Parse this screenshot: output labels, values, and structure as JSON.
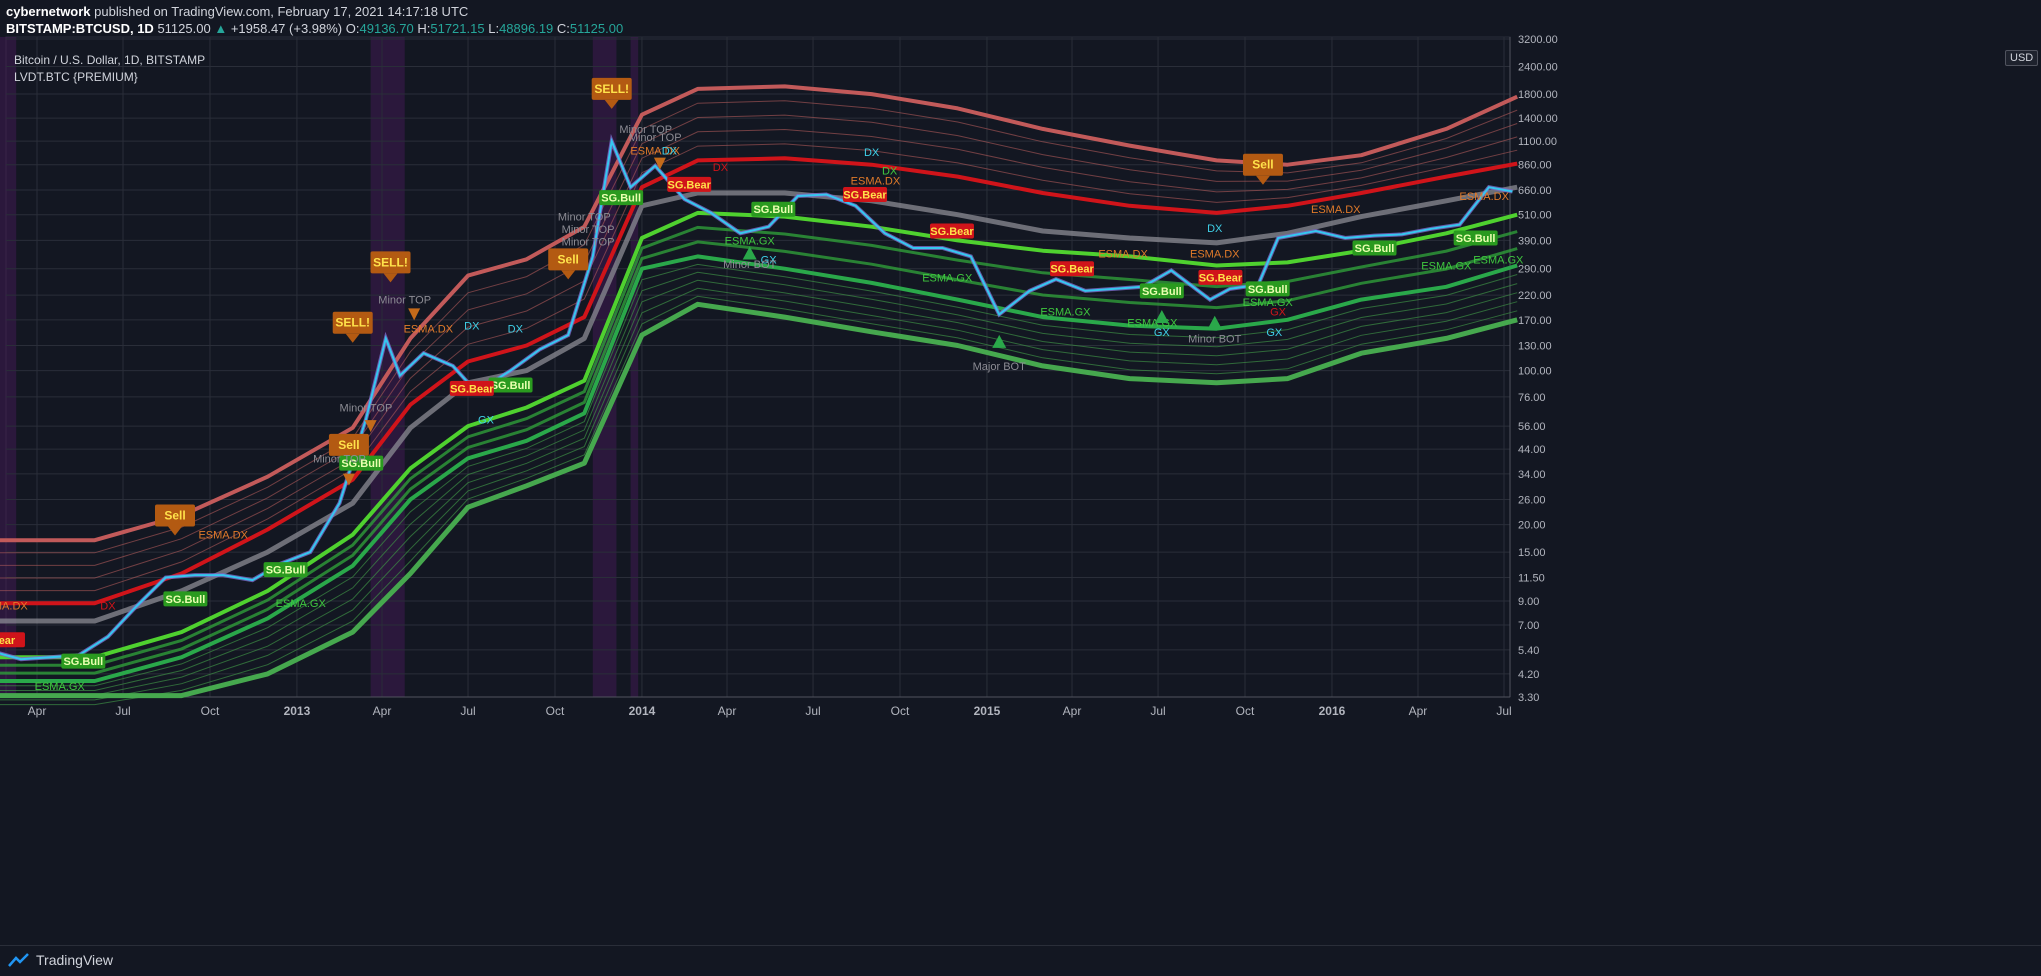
{
  "header": {
    "author": "cybernetwork",
    "published": "published on TradingView.com, February 17, 2021 14:17:18 UTC",
    "symbol": "BITSTAMP:BTCUSD, 1D",
    "last": "51125.00",
    "change": "+1958.47 (+3.98%)",
    "o_label": "O:",
    "o": "49136.70",
    "h_label": "H:",
    "h": "51721.15",
    "l_label": "L:",
    "l": "48896.19",
    "c_label": "C:",
    "c": "51125.00"
  },
  "legend": {
    "title": "Bitcoin / U.S. Dollar, 1D, BITSTAMP",
    "indicator": "LVDT.BTC {PREMIUM}",
    "currency": "USD"
  },
  "footer": {
    "brand": "TradingView"
  },
  "chart_data": {
    "type": "line",
    "scale": "log",
    "ylim": [
      3.3,
      3200
    ],
    "y_ticks": [
      "3.30",
      "4.20",
      "5.40",
      "7.00",
      "9.00",
      "11.50",
      "15.00",
      "20.00",
      "26.00",
      "34.00",
      "44.00",
      "56.00",
      "76.00",
      "100.00",
      "130.00",
      "170.00",
      "220.00",
      "290.00",
      "390.00",
      "510.00",
      "660.00",
      "860.00",
      "1100.00",
      "1400.00",
      "1800.00",
      "2400.00",
      "3200.00"
    ],
    "x_ticks": [
      "Apr",
      "Jul",
      "Oct",
      "2013",
      "Apr",
      "Jul",
      "Oct",
      "2014",
      "Apr",
      "Jul",
      "Oct",
      "2015",
      "Apr",
      "Jul",
      "Oct",
      "2016",
      "Apr",
      "Jul"
    ],
    "x_tick_dates": [
      "2012-04-01",
      "2012-07-01",
      "2012-10-01",
      "2013-01-01",
      "2013-04-01",
      "2013-07-01",
      "2013-10-01",
      "2014-01-01",
      "2014-04-01",
      "2014-07-01",
      "2014-10-01",
      "2015-01-01",
      "2015-04-01",
      "2015-07-01",
      "2015-10-01",
      "2016-01-01",
      "2016-04-01",
      "2016-07-01"
    ],
    "price": {
      "name": "BTCUSD",
      "x": [
        "2012-02-15",
        "2012-03-15",
        "2012-04-15",
        "2012-05-15",
        "2012-06-15",
        "2012-07-15",
        "2012-08-15",
        "2012-09-15",
        "2012-10-15",
        "2012-11-15",
        "2012-12-15",
        "2013-01-15",
        "2013-02-15",
        "2013-03-15",
        "2013-04-05",
        "2013-04-20",
        "2013-05-15",
        "2013-06-15",
        "2013-07-10",
        "2013-08-15",
        "2013-09-15",
        "2013-10-15",
        "2013-11-10",
        "2013-11-30",
        "2013-12-20",
        "2014-01-15",
        "2014-02-15",
        "2014-03-15",
        "2014-04-15",
        "2014-05-15",
        "2014-06-15",
        "2014-07-15",
        "2014-08-15",
        "2014-09-15",
        "2014-10-15",
        "2014-11-15",
        "2014-12-15",
        "2015-01-14",
        "2015-02-15",
        "2015-03-15",
        "2015-04-15",
        "2015-05-15",
        "2015-06-15",
        "2015-07-15",
        "2015-08-25",
        "2015-09-15",
        "2015-10-15",
        "2015-11-05",
        "2015-12-15",
        "2016-01-15",
        "2016-02-15",
        "2016-03-15",
        "2016-04-15",
        "2016-05-15",
        "2016-06-15",
        "2016-07-10"
      ],
      "y": [
        5.3,
        4.9,
        5.0,
        5.1,
        6.2,
        8.5,
        11.5,
        11.8,
        11.8,
        11.2,
        13.3,
        15,
        25,
        60,
        140,
        95,
        120,
        105,
        80,
        100,
        125,
        145,
        330,
        1100,
        680,
        850,
        600,
        520,
        420,
        450,
        620,
        630,
        560,
        420,
        360,
        360,
        330,
        180,
        230,
        260,
        230,
        235,
        240,
        285,
        210,
        235,
        245,
        400,
        430,
        400,
        410,
        415,
        440,
        460,
        680,
        650
      ]
    },
    "bands": {
      "x": [
        "2012-02-15",
        "2012-06-01",
        "2012-09-01",
        "2012-12-01",
        "2013-03-01",
        "2013-05-01",
        "2013-07-01",
        "2013-09-01",
        "2013-11-01",
        "2014-01-01",
        "2014-03-01",
        "2014-06-01",
        "2014-09-01",
        "2014-12-01",
        "2015-03-01",
        "2015-06-01",
        "2015-09-01",
        "2015-11-15",
        "2016-02-01",
        "2016-05-01",
        "2016-07-15"
      ],
      "top": [
        17,
        17,
        22,
        33,
        55,
        140,
        270,
        320,
        450,
        1450,
        1900,
        1950,
        1800,
        1550,
        1250,
        1050,
        900,
        860,
        950,
        1250,
        1750
      ],
      "red": [
        8.8,
        8.8,
        12,
        19,
        32,
        70,
        110,
        130,
        175,
        680,
        900,
        920,
        860,
        760,
        640,
        560,
        520,
        560,
        640,
        760,
        870
      ],
      "grey": [
        7.3,
        7.3,
        10,
        15,
        25,
        55,
        88,
        100,
        140,
        560,
        640,
        640,
        590,
        510,
        430,
        400,
        380,
        420,
        500,
        590,
        680
      ],
      "lime": [
        5.0,
        5.0,
        6.5,
        10,
        18,
        36,
        56,
        68,
        90,
        400,
        520,
        500,
        450,
        390,
        350,
        330,
        300,
        310,
        350,
        420,
        510
      ],
      "green": [
        3.9,
        3.9,
        5.0,
        7.5,
        13,
        26,
        40,
        48,
        64,
        290,
        330,
        290,
        250,
        210,
        175,
        160,
        155,
        170,
        210,
        240,
        300
      ],
      "bottom": [
        2.9,
        2.9,
        3.3,
        4.2,
        6.5,
        12,
        24,
        30,
        38,
        145,
        200,
        175,
        150,
        130,
        105,
        92,
        88,
        92,
        120,
        140,
        170
      ]
    },
    "annotations": [
      {
        "t": "SELL!",
        "x": "2013-11-30",
        "y": 1900,
        "kind": "sell"
      },
      {
        "t": "SELL!",
        "x": "2013-04-10",
        "y": 310,
        "kind": "sell"
      },
      {
        "t": "SELL!",
        "x": "2013-03-01",
        "y": 165,
        "kind": "sell"
      },
      {
        "t": "Sell",
        "x": "2012-08-25",
        "y": 22,
        "kind": "sell"
      },
      {
        "t": "Sell",
        "x": "2013-10-15",
        "y": 320,
        "kind": "sell"
      },
      {
        "t": "Sell",
        "x": "2013-02-25",
        "y": 46,
        "kind": "sell"
      },
      {
        "t": "Sell",
        "x": "2015-10-20",
        "y": 860,
        "kind": "sell"
      },
      {
        "t": "SG.Bull",
        "x": "2013-12-10",
        "y": 610,
        "kind": "bull"
      },
      {
        "t": "SG.Bull",
        "x": "2012-09-05",
        "y": 9.2,
        "kind": "bull"
      },
      {
        "t": "SG.Bull",
        "x": "2012-12-20",
        "y": 12.5,
        "kind": "bull"
      },
      {
        "t": "SG.Bull",
        "x": "2012-05-20",
        "y": 4.8,
        "kind": "bull"
      },
      {
        "t": "SG.Bull",
        "x": "2013-03-10",
        "y": 38,
        "kind": "bull"
      },
      {
        "t": "SG.Bull",
        "x": "2013-08-15",
        "y": 86,
        "kind": "bull"
      },
      {
        "t": "SG.Bull",
        "x": "2014-05-20",
        "y": 540,
        "kind": "bull"
      },
      {
        "t": "SG.Bull",
        "x": "2015-07-05",
        "y": 230,
        "kind": "bull"
      },
      {
        "t": "SG.Bull",
        "x": "2015-10-25",
        "y": 235,
        "kind": "bull"
      },
      {
        "t": "SG.Bull",
        "x": "2016-02-15",
        "y": 360,
        "kind": "bull"
      },
      {
        "t": "SG.Bull",
        "x": "2016-06-01",
        "y": 400,
        "kind": "bull"
      },
      {
        "t": "SG.Bear",
        "x": "2014-02-20",
        "y": 700,
        "kind": "bear"
      },
      {
        "t": "SG.Bear",
        "x": "2014-08-25",
        "y": 630,
        "kind": "bear"
      },
      {
        "t": "SG.Bear",
        "x": "2014-11-25",
        "y": 430,
        "kind": "bear"
      },
      {
        "t": "SG.Bear",
        "x": "2015-04-01",
        "y": 290,
        "kind": "bear"
      },
      {
        "t": "SG.Bear",
        "x": "2015-09-05",
        "y": 265,
        "kind": "bear"
      },
      {
        "t": "SG.Bear",
        "x": "2013-07-05",
        "y": 83,
        "kind": "bear"
      },
      {
        "t": "Bear",
        "x": "2012-02-25",
        "y": 6.0,
        "kind": "bear"
      },
      {
        "t": "ESMA.DX",
        "x": "2012-10-15",
        "y": 18,
        "kind": "edx"
      },
      {
        "t": "ESMA.DX",
        "x": "2013-05-20",
        "y": 155,
        "kind": "edx"
      },
      {
        "t": "ESMA.DX",
        "x": "2014-01-15",
        "y": 1000,
        "kind": "edx"
      },
      {
        "t": "ESMA.DX",
        "x": "2014-09-05",
        "y": 730,
        "kind": "edx"
      },
      {
        "t": "ESMA.DX",
        "x": "2015-05-25",
        "y": 340,
        "kind": "edx"
      },
      {
        "t": "ESMA.DX",
        "x": "2015-08-30",
        "y": 340,
        "kind": "edx"
      },
      {
        "t": "ESMA.DX",
        "x": "2016-01-05",
        "y": 540,
        "kind": "edx"
      },
      {
        "t": "ESMA.DX",
        "x": "2016-06-10",
        "y": 620,
        "kind": "edx"
      },
      {
        "t": "ESMA.DX",
        "x": "2012-02-25",
        "y": 8.6,
        "kind": "edx"
      },
      {
        "t": "ESMA.GX",
        "x": "2013-01-05",
        "y": 8.8,
        "kind": "egx"
      },
      {
        "t": "ESMA.GX",
        "x": "2012-04-25",
        "y": 3.7,
        "kind": "egx"
      },
      {
        "t": "ESMA.GX",
        "x": "2014-04-25",
        "y": 390,
        "kind": "egx"
      },
      {
        "t": "ESMA.GX",
        "x": "2014-11-20",
        "y": 265,
        "kind": "egx"
      },
      {
        "t": "ESMA.GX",
        "x": "2015-03-25",
        "y": 185,
        "kind": "egx"
      },
      {
        "t": "ESMA.GX",
        "x": "2015-10-25",
        "y": 205,
        "kind": "egx"
      },
      {
        "t": "ESMA.GX",
        "x": "2015-06-25",
        "y": 165,
        "kind": "egx"
      },
      {
        "t": "ESMA.GX",
        "x": "2016-05-01",
        "y": 300,
        "kind": "egx"
      },
      {
        "t": "ESMA.GX",
        "x": "2016-06-25",
        "y": 320,
        "kind": "egx"
      },
      {
        "t": "DX",
        "x": "2014-01-30",
        "y": 1000,
        "kind": "dx"
      },
      {
        "t": "DX",
        "x": "2014-09-01",
        "y": 980,
        "kind": "dx"
      },
      {
        "t": "DX",
        "x": "2013-07-05",
        "y": 160,
        "kind": "dx"
      },
      {
        "t": "DX",
        "x": "2013-08-20",
        "y": 155,
        "kind": "dx"
      },
      {
        "t": "DX",
        "x": "2015-08-30",
        "y": 445,
        "kind": "dx"
      },
      {
        "t": "GX",
        "x": "2013-07-20",
        "y": 60,
        "kind": "dx"
      },
      {
        "t": "GX",
        "x": "2015-07-05",
        "y": 150,
        "kind": "dx"
      },
      {
        "t": "GX",
        "x": "2015-11-01",
        "y": 150,
        "kind": "dx"
      },
      {
        "t": "GX",
        "x": "2014-05-15",
        "y": 320,
        "kind": "dx"
      },
      {
        "t": "DX",
        "x": "2014-09-20",
        "y": 810,
        "kind": "gdx"
      },
      {
        "t": "DX",
        "x": "2014-03-25",
        "y": 840,
        "kind": "rdx"
      },
      {
        "t": "DX",
        "x": "2012-06-15",
        "y": 8.6,
        "kind": "rdx"
      },
      {
        "t": "GX",
        "x": "2015-11-05",
        "y": 185,
        "kind": "rdx"
      },
      {
        "t": "Minor TOP",
        "x": "2014-01-05",
        "y": 1250,
        "kind": "grey"
      },
      {
        "t": "Minor TOP",
        "x": "2014-01-15",
        "y": 1150,
        "kind": "grey"
      },
      {
        "t": "Minor TOP",
        "x": "2013-04-25",
        "y": 210,
        "kind": "grey"
      },
      {
        "t": "Minor TOP",
        "x": "2013-03-15",
        "y": 68,
        "kind": "grey"
      },
      {
        "t": "Minor TOP",
        "x": "2013-02-15",
        "y": 40,
        "kind": "grey"
      },
      {
        "t": "Minor TOP",
        "x": "2013-11-01",
        "y": 500,
        "kind": "grey"
      },
      {
        "t": "Minor TOP",
        "x": "2013-11-05",
        "y": 440,
        "kind": "grey"
      },
      {
        "t": "Minor TOP",
        "x": "2013-11-05",
        "y": 385,
        "kind": "grey"
      },
      {
        "t": "Minor BOT",
        "x": "2014-04-25",
        "y": 305,
        "kind": "grey"
      },
      {
        "t": "Minor BOT",
        "x": "2015-08-30",
        "y": 140,
        "kind": "grey"
      },
      {
        "t": "Major BOT",
        "x": "2015-01-14",
        "y": 105,
        "kind": "grey"
      }
    ]
  }
}
